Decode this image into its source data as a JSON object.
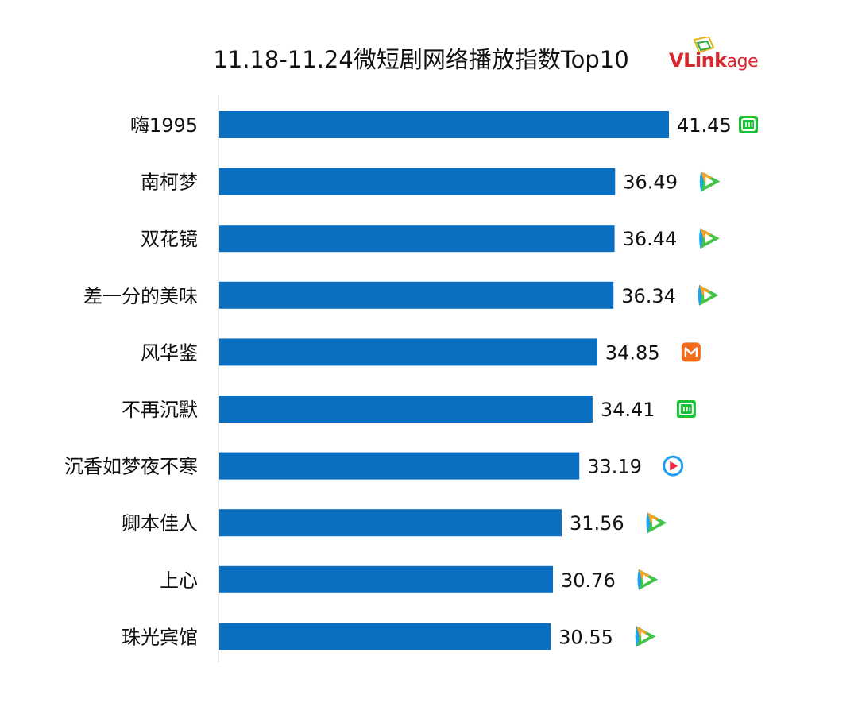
{
  "chart_data": {
    "type": "bar",
    "orientation": "horizontal",
    "title": "11.18-11.24微短剧网络播放指数Top10",
    "categories": [
      "嗨1995",
      "南柯梦",
      "双花镜",
      "差一分的美味",
      "风华鉴",
      "不再沉默",
      "沉香如梦夜不寒",
      "卿本佳人",
      "上心",
      "珠光宾馆"
    ],
    "values": [
      41.45,
      36.49,
      36.44,
      36.34,
      34.85,
      34.41,
      33.19,
      31.56,
      30.76,
      30.55
    ],
    "platform_icons": [
      "iqiyi-icon",
      "tencent-video-icon",
      "tencent-video-icon",
      "tencent-video-icon",
      "mango-tv-icon",
      "iqiyi-icon",
      "youku-icon",
      "tencent-video-icon",
      "tencent-video-icon",
      "tencent-video-icon"
    ],
    "xlim": [
      0,
      41.45
    ],
    "grid": false,
    "legend": "none",
    "bar_color": "#0b6fc1"
  },
  "brand": {
    "logo_text_main": "VLink",
    "logo_text_tail": "age",
    "logo_color": "#d8262e"
  },
  "colors": {
    "iqiyi": "#19c136",
    "mango": "#f26b1d",
    "tencent_blue": "#1aa3f0",
    "tencent_green": "#43c443",
    "tencent_orange": "#f7a223",
    "youku": "#1f9ff0",
    "youku_red": "#ef2a3c"
  }
}
